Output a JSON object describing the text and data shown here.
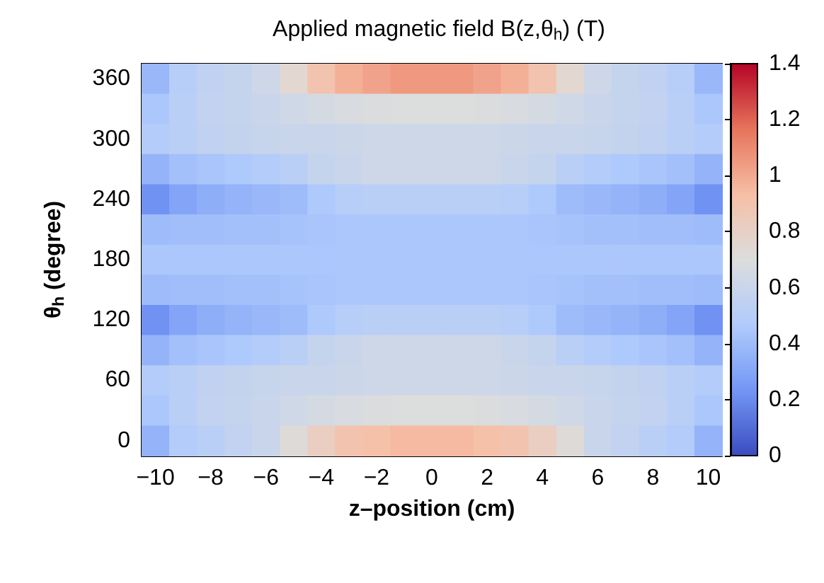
{
  "chart_data": {
    "type": "heatmap",
    "title": "Applied magnetic field B(z,θ$_{h}$) (T)",
    "xlabel": "z–position (cm)",
    "ylabel": "θ$_{h}$ (degree)",
    "categories": [
      "−10",
      null,
      "−8",
      null,
      "−6",
      null,
      "−4",
      null,
      "−2",
      null,
      "0",
      null,
      "2",
      null,
      "4",
      null,
      "6",
      null,
      "8",
      null,
      "10"
    ],
    "y_categories": [
      "360",
      null,
      "300",
      null,
      "240",
      null,
      "180",
      null,
      "120",
      null,
      "60",
      null,
      "0"
    ],
    "clim": [
      0,
      1.4
    ],
    "cticks": [
      0,
      0.2,
      0.4,
      0.6,
      0.8,
      1,
      1.2,
      1.4
    ],
    "colors": [
      "#3b4cc0",
      "#7396f5",
      "#b0cbfc",
      "#dcdddd",
      "#f6bfa6",
      "#e7745b",
      "#b40426"
    ],
    "cells": [
      [
        0.38,
        0.5,
        0.55,
        0.58,
        0.62,
        0.75,
        0.9,
        0.98,
        1.02,
        1.05,
        1.05,
        1.05,
        1.02,
        0.98,
        0.9,
        0.75,
        0.62,
        0.58,
        0.55,
        0.5,
        0.38
      ],
      [
        0.45,
        0.52,
        0.56,
        0.58,
        0.6,
        0.63,
        0.66,
        0.68,
        0.69,
        0.7,
        0.7,
        0.7,
        0.69,
        0.68,
        0.66,
        0.63,
        0.6,
        0.58,
        0.56,
        0.52,
        0.45
      ],
      [
        0.48,
        0.52,
        0.55,
        0.57,
        0.59,
        0.6,
        0.6,
        0.61,
        0.62,
        0.62,
        0.62,
        0.62,
        0.62,
        0.61,
        0.6,
        0.6,
        0.59,
        0.57,
        0.55,
        0.52,
        0.48
      ],
      [
        0.36,
        0.42,
        0.44,
        0.46,
        0.48,
        0.52,
        0.58,
        0.6,
        0.62,
        0.62,
        0.62,
        0.62,
        0.62,
        0.6,
        0.58,
        0.52,
        0.48,
        0.46,
        0.44,
        0.42,
        0.36
      ],
      [
        0.22,
        0.3,
        0.34,
        0.36,
        0.38,
        0.4,
        0.46,
        0.5,
        0.52,
        0.52,
        0.52,
        0.52,
        0.52,
        0.5,
        0.46,
        0.4,
        0.38,
        0.36,
        0.34,
        0.3,
        0.22
      ],
      [
        0.4,
        0.41,
        0.41,
        0.42,
        0.42,
        0.43,
        0.44,
        0.45,
        0.45,
        0.45,
        0.45,
        0.45,
        0.45,
        0.45,
        0.44,
        0.43,
        0.42,
        0.42,
        0.41,
        0.41,
        0.4
      ],
      [
        0.45,
        0.45,
        0.45,
        0.45,
        0.45,
        0.45,
        0.45,
        0.45,
        0.45,
        0.45,
        0.45,
        0.45,
        0.45,
        0.45,
        0.45,
        0.45,
        0.45,
        0.45,
        0.45,
        0.45,
        0.45
      ],
      [
        0.4,
        0.41,
        0.41,
        0.42,
        0.42,
        0.43,
        0.44,
        0.45,
        0.45,
        0.45,
        0.45,
        0.45,
        0.45,
        0.45,
        0.44,
        0.43,
        0.42,
        0.42,
        0.41,
        0.41,
        0.4
      ],
      [
        0.22,
        0.3,
        0.34,
        0.36,
        0.38,
        0.4,
        0.46,
        0.5,
        0.52,
        0.52,
        0.52,
        0.52,
        0.52,
        0.5,
        0.46,
        0.4,
        0.38,
        0.36,
        0.34,
        0.3,
        0.22
      ],
      [
        0.36,
        0.42,
        0.44,
        0.46,
        0.48,
        0.52,
        0.58,
        0.6,
        0.62,
        0.62,
        0.62,
        0.62,
        0.62,
        0.6,
        0.58,
        0.52,
        0.48,
        0.46,
        0.44,
        0.42,
        0.36
      ],
      [
        0.48,
        0.52,
        0.55,
        0.57,
        0.59,
        0.6,
        0.6,
        0.61,
        0.62,
        0.62,
        0.62,
        0.62,
        0.62,
        0.61,
        0.6,
        0.6,
        0.59,
        0.57,
        0.55,
        0.52,
        0.48
      ],
      [
        0.45,
        0.52,
        0.56,
        0.58,
        0.6,
        0.63,
        0.66,
        0.68,
        0.69,
        0.7,
        0.7,
        0.7,
        0.69,
        0.68,
        0.66,
        0.63,
        0.6,
        0.58,
        0.56,
        0.52,
        0.45
      ],
      [
        0.36,
        0.48,
        0.52,
        0.56,
        0.6,
        0.72,
        0.82,
        0.9,
        0.92,
        0.95,
        0.95,
        0.95,
        0.92,
        0.9,
        0.82,
        0.72,
        0.6,
        0.56,
        0.52,
        0.48,
        0.36
      ]
    ]
  }
}
